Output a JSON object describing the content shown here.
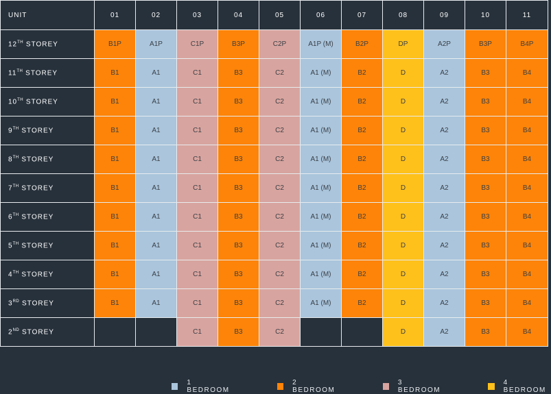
{
  "header": {
    "first": "UNIT",
    "units": [
      "01",
      "02",
      "03",
      "04",
      "05",
      "06",
      "07",
      "08",
      "09",
      "10",
      "11"
    ]
  },
  "colors": {
    "c1": "#aac5dc",
    "c2": "#fd8408",
    "c3": "#d8a49f",
    "c4": "#fec01b"
  },
  "rows": [
    {
      "num": "12",
      "suffix": "TH",
      "label": " STOREY",
      "cells": [
        [
          "B1P",
          "c2"
        ],
        [
          "A1P",
          "c1"
        ],
        [
          "C1P",
          "c3"
        ],
        [
          "B3P",
          "c2"
        ],
        [
          "C2P",
          "c3"
        ],
        [
          "A1P (M)",
          "c1"
        ],
        [
          "B2P",
          "c2"
        ],
        [
          "DP",
          "c4"
        ],
        [
          "A2P",
          "c1"
        ],
        [
          "B3P",
          "c2"
        ],
        [
          "B4P",
          "c2"
        ]
      ]
    },
    {
      "num": "11",
      "suffix": "TH",
      "label": " STOREY",
      "cells": [
        [
          "B1",
          "c2"
        ],
        [
          "A1",
          "c1"
        ],
        [
          "C1",
          "c3"
        ],
        [
          "B3",
          "c2"
        ],
        [
          "C2",
          "c3"
        ],
        [
          "A1 (M)",
          "c1"
        ],
        [
          "B2",
          "c2"
        ],
        [
          "D",
          "c4"
        ],
        [
          "A2",
          "c1"
        ],
        [
          "B3",
          "c2"
        ],
        [
          "B4",
          "c2"
        ]
      ]
    },
    {
      "num": "10",
      "suffix": "TH",
      "label": " STOREY",
      "cells": [
        [
          "B1",
          "c2"
        ],
        [
          "A1",
          "c1"
        ],
        [
          "C1",
          "c3"
        ],
        [
          "B3",
          "c2"
        ],
        [
          "C2",
          "c3"
        ],
        [
          "A1 (M)",
          "c1"
        ],
        [
          "B2",
          "c2"
        ],
        [
          "D",
          "c4"
        ],
        [
          "A2",
          "c1"
        ],
        [
          "B3",
          "c2"
        ],
        [
          "B4",
          "c2"
        ]
      ]
    },
    {
      "num": "9",
      "suffix": "TH",
      "label": " STOREY",
      "cells": [
        [
          "B1",
          "c2"
        ],
        [
          "A1",
          "c1"
        ],
        [
          "C1",
          "c3"
        ],
        [
          "B3",
          "c2"
        ],
        [
          "C2",
          "c3"
        ],
        [
          "A1 (M)",
          "c1"
        ],
        [
          "B2",
          "c2"
        ],
        [
          "D",
          "c4"
        ],
        [
          "A2",
          "c1"
        ],
        [
          "B3",
          "c2"
        ],
        [
          "B4",
          "c2"
        ]
      ]
    },
    {
      "num": "8",
      "suffix": "TH",
      "label": " STOREY",
      "cells": [
        [
          "B1",
          "c2"
        ],
        [
          "A1",
          "c1"
        ],
        [
          "C1",
          "c3"
        ],
        [
          "B3",
          "c2"
        ],
        [
          "C2",
          "c3"
        ],
        [
          "A1 (M)",
          "c1"
        ],
        [
          "B2",
          "c2"
        ],
        [
          "D",
          "c4"
        ],
        [
          "A2",
          "c1"
        ],
        [
          "B3",
          "c2"
        ],
        [
          "B4",
          "c2"
        ]
      ]
    },
    {
      "num": "7",
      "suffix": "TH",
      "label": " STOREY",
      "cells": [
        [
          "B1",
          "c2"
        ],
        [
          "A1",
          "c1"
        ],
        [
          "C1",
          "c3"
        ],
        [
          "B3",
          "c2"
        ],
        [
          "C2",
          "c3"
        ],
        [
          "A1 (M)",
          "c1"
        ],
        [
          "B2",
          "c2"
        ],
        [
          "D",
          "c4"
        ],
        [
          "A2",
          "c1"
        ],
        [
          "B3",
          "c2"
        ],
        [
          "B4",
          "c2"
        ]
      ]
    },
    {
      "num": "6",
      "suffix": "TH",
      "label": " STOREY",
      "cells": [
        [
          "B1",
          "c2"
        ],
        [
          "A1",
          "c1"
        ],
        [
          "C1",
          "c3"
        ],
        [
          "B3",
          "c2"
        ],
        [
          "C2",
          "c3"
        ],
        [
          "A1 (M)",
          "c1"
        ],
        [
          "B2",
          "c2"
        ],
        [
          "D",
          "c4"
        ],
        [
          "A2",
          "c1"
        ],
        [
          "B3",
          "c2"
        ],
        [
          "B4",
          "c2"
        ]
      ]
    },
    {
      "num": "5",
      "suffix": "TH",
      "label": " STOREY",
      "cells": [
        [
          "B1",
          "c2"
        ],
        [
          "A1",
          "c1"
        ],
        [
          "C1",
          "c3"
        ],
        [
          "B3",
          "c2"
        ],
        [
          "C2",
          "c3"
        ],
        [
          "A1 (M)",
          "c1"
        ],
        [
          "B2",
          "c2"
        ],
        [
          "D",
          "c4"
        ],
        [
          "A2",
          "c1"
        ],
        [
          "B3",
          "c2"
        ],
        [
          "B4",
          "c2"
        ]
      ]
    },
    {
      "num": "4",
      "suffix": "TH",
      "label": " STOREY",
      "cells": [
        [
          "B1",
          "c2"
        ],
        [
          "A1",
          "c1"
        ],
        [
          "C1",
          "c3"
        ],
        [
          "B3",
          "c2"
        ],
        [
          "C2",
          "c3"
        ],
        [
          "A1 (M)",
          "c1"
        ],
        [
          "B2",
          "c2"
        ],
        [
          "D",
          "c4"
        ],
        [
          "A2",
          "c1"
        ],
        [
          "B3",
          "c2"
        ],
        [
          "B4",
          "c2"
        ]
      ]
    },
    {
      "num": "3",
      "suffix": "RD",
      "label": " STOREY",
      "cells": [
        [
          "B1",
          "c2"
        ],
        [
          "A1",
          "c1"
        ],
        [
          "C1",
          "c3"
        ],
        [
          "B3",
          "c2"
        ],
        [
          "C2",
          "c3"
        ],
        [
          "A1 (M)",
          "c1"
        ],
        [
          "B2",
          "c2"
        ],
        [
          "D",
          "c4"
        ],
        [
          "A2",
          "c1"
        ],
        [
          "B3",
          "c2"
        ],
        [
          "B4",
          "c2"
        ]
      ]
    },
    {
      "num": "2",
      "suffix": "ND",
      "label": " STOREY",
      "cells": [
        [
          "",
          "empty"
        ],
        [
          "",
          "empty"
        ],
        [
          "C1",
          "c3"
        ],
        [
          "B3",
          "c2"
        ],
        [
          "C2",
          "c3"
        ],
        [
          "",
          "empty"
        ],
        [
          "",
          "empty"
        ],
        [
          "D",
          "c4"
        ],
        [
          "A2",
          "c1"
        ],
        [
          "B3",
          "c2"
        ],
        [
          "B4",
          "c2"
        ]
      ]
    }
  ],
  "legend": [
    {
      "label": "1 BEDROOM",
      "color": "#aac5dc"
    },
    {
      "label": "2 BEDROOM",
      "color": "#fd8408"
    },
    {
      "label": "3 BEDROOM",
      "color": "#d8a49f"
    },
    {
      "label": "4 BEDROOM",
      "color": "#fec01b"
    }
  ]
}
